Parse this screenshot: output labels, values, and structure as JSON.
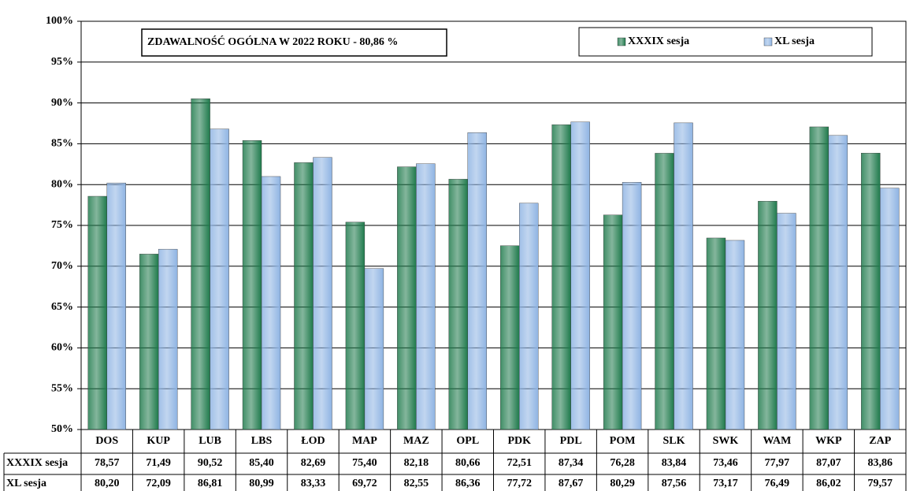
{
  "chart_data": {
    "type": "bar",
    "title": "ZDAWALNOŚĆ OGÓLNA W 2022 ROKU - 80,86 %",
    "categories": [
      "DOS",
      "KUP",
      "LUB",
      "LBS",
      "ŁOD",
      "MAP",
      "MAZ",
      "OPL",
      "PDK",
      "PDL",
      "POM",
      "SLK",
      "SWK",
      "WAM",
      "WKP",
      "ZAP"
    ],
    "series": [
      {
        "name": "XXXIX sesja",
        "color": "#1f7a4c",
        "values": [
          78.57,
          71.49,
          90.52,
          85.4,
          82.69,
          75.4,
          82.18,
          80.66,
          72.51,
          87.34,
          76.28,
          83.84,
          73.46,
          77.97,
          87.07,
          83.86
        ],
        "value_labels": [
          "78,57",
          "71,49",
          "90,52",
          "85,40",
          "82,69",
          "75,40",
          "82,18",
          "80,66",
          "72,51",
          "87,34",
          "76,28",
          "83,84",
          "73,46",
          "77,97",
          "87,07",
          "83,86"
        ]
      },
      {
        "name": "XL sesja",
        "color": "#8fb4e3",
        "values": [
          80.2,
          72.09,
          86.81,
          80.99,
          83.33,
          69.72,
          82.55,
          86.36,
          77.72,
          87.67,
          80.29,
          87.56,
          73.17,
          76.49,
          86.02,
          79.57
        ],
        "value_labels": [
          "80,20",
          "72,09",
          "86,81",
          "80,99",
          "83,33",
          "69,72",
          "82,55",
          "86,36",
          "77,72",
          "87,67",
          "80,29",
          "87,56",
          "73,17",
          "76,49",
          "86,02",
          "79,57"
        ]
      }
    ],
    "ylim": [
      50,
      100
    ],
    "yticks": [
      {
        "value": 50,
        "label": "50%"
      },
      {
        "value": 55,
        "label": "55%"
      },
      {
        "value": 60,
        "label": "60%"
      },
      {
        "value": 65,
        "label": "65%"
      },
      {
        "value": 70,
        "label": "70%"
      },
      {
        "value": 75,
        "label": "75%"
      },
      {
        "value": 80,
        "label": "80%"
      },
      {
        "value": 85,
        "label": "85%"
      },
      {
        "value": 90,
        "label": "90%"
      },
      {
        "value": 95,
        "label": "95%"
      },
      {
        "value": 100,
        "label": "100%"
      }
    ],
    "grid": true
  }
}
